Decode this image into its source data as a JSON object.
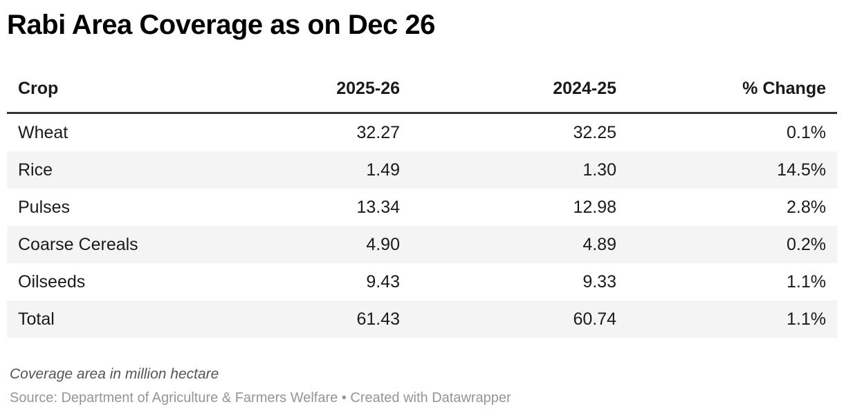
{
  "title": "Rabi Area Coverage as on Dec 26",
  "table": {
    "columns": [
      "Crop",
      "2025-26",
      "2024-25",
      "% Change"
    ],
    "rows": [
      [
        "Wheat",
        "32.27",
        "32.25",
        "0.1%"
      ],
      [
        "Rice",
        "1.49",
        "1.30",
        "14.5%"
      ],
      [
        "Pulses",
        "13.34",
        "12.98",
        "2.8%"
      ],
      [
        "Coarse Cereals",
        "4.90",
        "4.89",
        "0.2%"
      ],
      [
        "Oilseeds",
        "9.43",
        "9.33",
        "1.1%"
      ],
      [
        "Total",
        "61.43",
        "60.74",
        "1.1%"
      ]
    ]
  },
  "footer": {
    "note": "Coverage area in million hectare",
    "source": "Source: Department of Agriculture & Farmers Welfare • Created with Datawrapper"
  },
  "colors": {
    "title_text": "#000000",
    "body_text": "#1a1a1a",
    "header_border": "#333333",
    "alt_row_background": "#f4f4f4",
    "note_text": "#555555",
    "source_text": "#959595",
    "page_background": "#ffffff"
  },
  "chart_data": {
    "type": "table",
    "title": "Rabi Area Coverage as on Dec 26",
    "columns": [
      "Crop",
      "2025-26",
      "2024-25",
      "% Change"
    ],
    "rows": [
      {
        "crop": "Wheat",
        "y2025_26": 32.27,
        "y2024_25": 32.25,
        "pct_change": "0.1%"
      },
      {
        "crop": "Rice",
        "y2025_26": 1.49,
        "y2024_25": 1.3,
        "pct_change": "14.5%"
      },
      {
        "crop": "Pulses",
        "y2025_26": 13.34,
        "y2024_25": 12.98,
        "pct_change": "2.8%"
      },
      {
        "crop": "Coarse Cereals",
        "y2025_26": 4.9,
        "y2024_25": 4.89,
        "pct_change": "0.2%"
      },
      {
        "crop": "Oilseeds",
        "y2025_26": 9.43,
        "y2024_25": 9.33,
        "pct_change": "1.1%"
      },
      {
        "crop": "Total",
        "y2025_26": 61.43,
        "y2024_25": 60.74,
        "pct_change": "1.1%"
      }
    ],
    "unit": "million hectare",
    "note": "Coverage area in million hectare",
    "source": "Source: Department of Agriculture & Farmers Welfare • Created with Datawrapper",
    "layout_hints": {
      "numeric_columns_alignment": "right",
      "alternating_row_shading": true,
      "header_rule": "thick dark line below header"
    }
  }
}
